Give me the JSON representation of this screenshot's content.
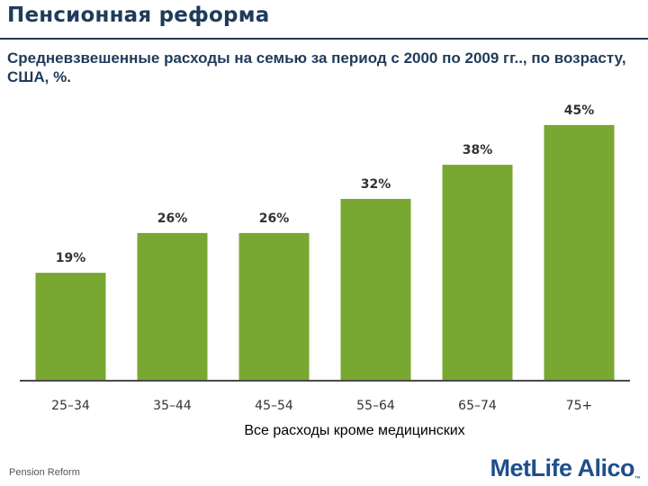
{
  "header": {
    "title": "Пенсионная реформа"
  },
  "subtitle": "Средневзвешенные расходы на семью за период с 2000 по 2009 гг.., по возрасту, США, %.",
  "chart_data": {
    "type": "bar",
    "title": "Средневзвешенные расходы на семью за период с 2000 по 2009 гг.., по возрасту, США, %.",
    "categories": [
      "25–34",
      "35–44",
      "45–54",
      "55–64",
      "65–74",
      "75+"
    ],
    "values": [
      19,
      26,
      26,
      32,
      38,
      45
    ],
    "value_labels": [
      "19%",
      "26%",
      "26%",
      "32%",
      "38%",
      "45%"
    ],
    "xlabel": "Все расходы кроме медицинских",
    "ylabel": "",
    "ylim": [
      0,
      48
    ],
    "grid": false,
    "bar_color": "#78a832"
  },
  "footer": {
    "text": "Pension Reform",
    "logo": "MetLife Alico",
    "logo_tm": "™",
    "logo_color": "#1f4e8c"
  }
}
